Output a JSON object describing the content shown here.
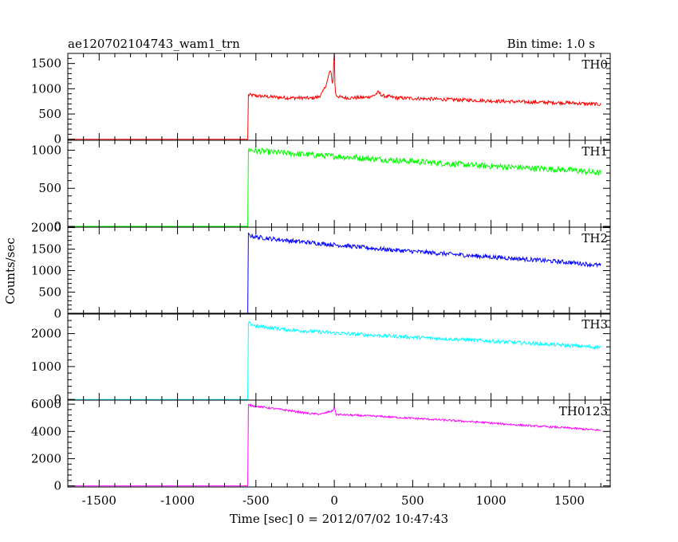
{
  "header": {
    "title": "ae120702104743_wam1_trn",
    "bin_time": "Bin time: 1.0 s"
  },
  "chart_data": {
    "type": "line",
    "ylabel": "Counts/sec",
    "xlabel": "Time [sec] 0 = 2012/07/02 10:47:43",
    "xlim": [
      -1700,
      1760
    ],
    "xticks": [
      -1500,
      -1000,
      -500,
      0,
      500,
      1000,
      1500
    ],
    "grid": false,
    "panels": [
      {
        "name": "TH0",
        "color": "#ff0000",
        "ylim": [
          -20,
          1700
        ],
        "yticks": [
          0,
          500,
          1000,
          1500
        ],
        "x": [
          -1700,
          -552,
          -550,
          -545,
          -500,
          -400,
          -300,
          -200,
          -150,
          -100,
          -75,
          -50,
          -40,
          -30,
          -20,
          -10,
          0,
          5,
          10,
          20,
          40,
          100,
          200,
          250,
          280,
          310,
          400,
          500,
          700,
          1000,
          1200,
          1500,
          1700
        ],
        "values": [
          0,
          0,
          880,
          880,
          860,
          840,
          820,
          820,
          810,
          840,
          920,
          1100,
          1200,
          1350,
          1300,
          1050,
          1720,
          950,
          880,
          860,
          830,
          820,
          830,
          860,
          930,
          860,
          820,
          810,
          790,
          760,
          740,
          720,
          690
        ],
        "noise": 35
      },
      {
        "name": "TH1",
        "color": "#00ff00",
        "ylim": [
          -10,
          1130
        ],
        "yticks": [
          0,
          500,
          1000
        ],
        "x": [
          -1700,
          -552,
          -550,
          -500,
          -300,
          0,
          300,
          600,
          900,
          1200,
          1500,
          1700
        ],
        "values": [
          0,
          0,
          1010,
          990,
          960,
          920,
          880,
          840,
          800,
          770,
          740,
          700
        ],
        "noise": 40
      },
      {
        "name": "TH2",
        "color": "#0000ff",
        "ylim": [
          -10,
          2010
        ],
        "yticks": [
          0,
          500,
          1000,
          1500,
          2000
        ],
        "x": [
          -1700,
          -552,
          -550,
          -500,
          -300,
          0,
          300,
          600,
          900,
          1200,
          1500,
          1700
        ],
        "values": [
          0,
          0,
          1830,
          1780,
          1700,
          1600,
          1500,
          1420,
          1340,
          1270,
          1190,
          1120
        ],
        "noise": 50
      },
      {
        "name": "TH3",
        "color": "#00ffff",
        "ylim": [
          -20,
          2620
        ],
        "yticks": [
          0,
          1000,
          2000
        ],
        "x": [
          -1700,
          -552,
          -550,
          -500,
          -300,
          0,
          300,
          600,
          900,
          1200,
          1500,
          1700
        ],
        "values": [
          0,
          0,
          2320,
          2230,
          2120,
          2020,
          1940,
          1870,
          1800,
          1720,
          1640,
          1580
        ],
        "noise": 55
      },
      {
        "name": "TH0123",
        "color": "#ff00ff",
        "ylim": [
          -80,
          6300
        ],
        "yticks": [
          0,
          2000,
          4000,
          6000
        ],
        "x": [
          -1700,
          -552,
          -550,
          -500,
          -300,
          -150,
          -80,
          -40,
          -10,
          0,
          10,
          100,
          300,
          600,
          900,
          1200,
          1500,
          1700
        ],
        "values": [
          0,
          0,
          5950,
          5850,
          5550,
          5300,
          5280,
          5420,
          5500,
          5850,
          5250,
          5200,
          5100,
          4900,
          4700,
          4450,
          4250,
          4080
        ],
        "noise": 70
      }
    ]
  }
}
